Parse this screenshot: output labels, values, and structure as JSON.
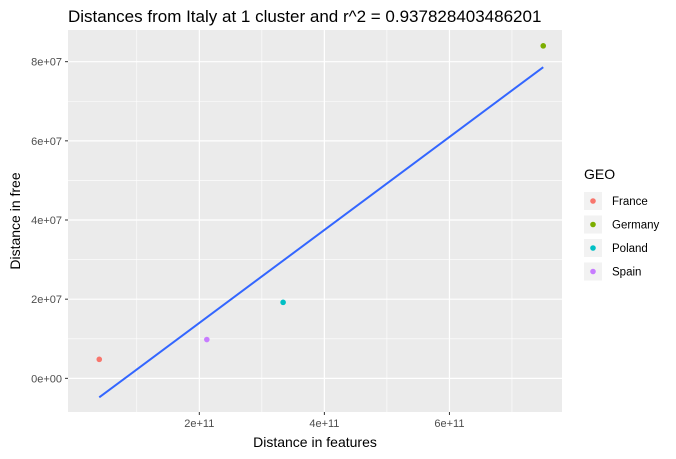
{
  "chart_data": {
    "type": "scatter",
    "title": "Distances from  Italy  at  1  cluster and r^2 =  0.937828403486201",
    "xlabel": "Distance in features",
    "ylabel": "Distance in free",
    "xlim": [
      -10000000000,
      780000000000
    ],
    "ylim": [
      -8500000,
      88000000
    ],
    "x_ticks": [
      {
        "value": 200000000000,
        "label": "2e+11"
      },
      {
        "value": 400000000000,
        "label": "4e+11"
      },
      {
        "value": 600000000000,
        "label": "6e+11"
      }
    ],
    "y_ticks": [
      {
        "value": 0,
        "label": "0e+00"
      },
      {
        "value": 20000000,
        "label": "2e+07"
      },
      {
        "value": 40000000,
        "label": "4e+07"
      },
      {
        "value": 60000000,
        "label": "6e+07"
      },
      {
        "value": 80000000,
        "label": "8e+07"
      }
    ],
    "legend": {
      "title": "GEO",
      "position": "right",
      "items": [
        {
          "label": "France",
          "color": "#F8766D"
        },
        {
          "label": "Germany",
          "color": "#7CAE00"
        },
        {
          "label": "Poland",
          "color": "#00BFC4"
        },
        {
          "label": "Spain",
          "color": "#C77CFF"
        }
      ]
    },
    "points": [
      {
        "geo": "France",
        "x": 40000000000,
        "y": 4800000,
        "color": "#F8766D"
      },
      {
        "geo": "Spain",
        "x": 212000000000,
        "y": 9800000,
        "color": "#C77CFF"
      },
      {
        "geo": "Poland",
        "x": 334000000000,
        "y": 19200000,
        "color": "#00BFC4"
      },
      {
        "geo": "Germany",
        "x": 750000000000,
        "y": 84000000,
        "color": "#7CAE00"
      }
    ],
    "fit_line": {
      "color": "#3366FF",
      "x": [
        40000000000,
        750000000000
      ],
      "y": [
        -4800000,
        78600000
      ]
    },
    "grid": true,
    "panel_background": "#EBEBEB"
  }
}
